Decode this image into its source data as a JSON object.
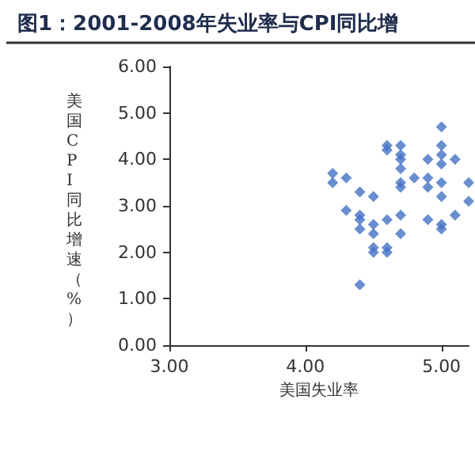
{
  "chart_data": {
    "type": "scatter",
    "title": "图1：2001-2008年失业率与CPI同比增",
    "xlabel": "美国失业率",
    "ylabel": "美国CPI同比增速（%）",
    "x": [
      4.2,
      4.2,
      4.3,
      4.3,
      4.4,
      4.4,
      4.4,
      4.4,
      4.4,
      4.5,
      4.5,
      4.5,
      4.5,
      4.5,
      4.6,
      4.6,
      4.6,
      4.6,
      4.6,
      4.7,
      4.7,
      4.7,
      4.7,
      4.7,
      4.7,
      4.7,
      4.7,
      4.8,
      4.9,
      4.9,
      4.9,
      4.9,
      5.0,
      5.0,
      5.0,
      5.0,
      5.0,
      5.0,
      5.0,
      5.0,
      5.1,
      5.1,
      5.2,
      5.2
    ],
    "values": [
      3.7,
      3.5,
      3.6,
      2.9,
      3.3,
      2.8,
      2.7,
      2.5,
      1.3,
      3.2,
      2.6,
      2.4,
      2.1,
      2.0,
      4.3,
      4.2,
      2.7,
      2.1,
      2.0,
      4.3,
      4.1,
      4.0,
      3.8,
      3.5,
      3.4,
      2.8,
      2.4,
      3.6,
      4.0,
      3.6,
      3.4,
      2.7,
      4.7,
      4.3,
      4.1,
      3.9,
      3.5,
      3.2,
      2.6,
      2.5,
      4.0,
      2.8,
      3.5,
      3.1
    ],
    "color": "#4472c4",
    "marker": "diamond",
    "grid": false,
    "xlim": [
      3,
      5.2
    ],
    "xticks": [
      {
        "value": 3,
        "label": "3.00"
      },
      {
        "value": 4,
        "label": "4.00"
      },
      {
        "value": 5,
        "label": "5.00"
      }
    ],
    "ylim": [
      0,
      6
    ],
    "yticks": [
      {
        "value": 0,
        "label": "0.00"
      },
      {
        "value": 1,
        "label": "1.00"
      },
      {
        "value": 2,
        "label": "2.00"
      },
      {
        "value": 3,
        "label": "3.00"
      },
      {
        "value": 4,
        "label": "4.00"
      },
      {
        "value": 5,
        "label": "5.00"
      },
      {
        "value": 6,
        "label": "6.00"
      }
    ]
  }
}
